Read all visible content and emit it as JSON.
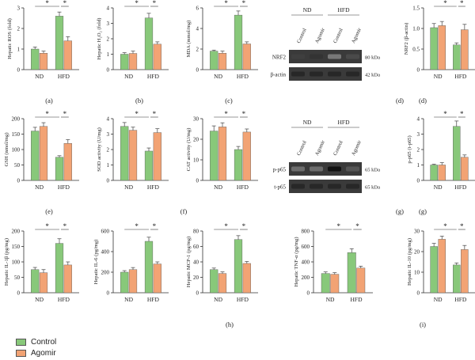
{
  "colors": {
    "control": "#88c87a",
    "agomir": "#f2a374",
    "error": "#444444",
    "axis": "#333333"
  },
  "legend": [
    {
      "label": "Control",
      "color": "#88c87a"
    },
    {
      "label": "Agomir",
      "color": "#f2a374"
    }
  ],
  "chart_data": [
    {
      "id": "ros",
      "panel": "(a)",
      "type": "bar",
      "ylabel": "Hepatic ROS (fold)",
      "yticks": [
        0,
        1,
        2,
        3
      ],
      "ylim": [
        0,
        3
      ],
      "categories": [
        "ND",
        "HFD"
      ],
      "series": [
        {
          "name": "Control",
          "values": [
            1.0,
            2.6
          ],
          "errors": [
            0.1,
            0.2
          ]
        },
        {
          "name": "Agomir",
          "values": [
            0.8,
            1.4
          ],
          "errors": [
            0.1,
            0.2
          ]
        }
      ],
      "significance": [
        "*",
        "*"
      ]
    },
    {
      "id": "h2o2",
      "panel": "(b)",
      "type": "bar",
      "ylabel": "Hepatic H₂O₂ (fold)",
      "yticks": [
        0,
        1,
        2,
        3,
        4
      ],
      "ylim": [
        0,
        4
      ],
      "categories": [
        "ND",
        "HFD"
      ],
      "series": [
        {
          "name": "Control",
          "values": [
            1.0,
            3.35
          ],
          "errors": [
            0.1,
            0.3
          ]
        },
        {
          "name": "Agomir",
          "values": [
            1.05,
            1.65
          ],
          "errors": [
            0.15,
            0.15
          ]
        }
      ],
      "significance": [
        "*",
        "*"
      ]
    },
    {
      "id": "mda",
      "panel": "(c)",
      "type": "bar",
      "ylabel": "MDA (mmol/mg)",
      "yticks": [
        0,
        2,
        4,
        6
      ],
      "ylim": [
        0,
        6
      ],
      "categories": [
        "ND",
        "HFD"
      ],
      "series": [
        {
          "name": "Control",
          "values": [
            1.8,
            5.3
          ],
          "errors": [
            0.1,
            0.4
          ]
        },
        {
          "name": "Agomir",
          "values": [
            1.6,
            2.5
          ],
          "errors": [
            0.2,
            0.2
          ]
        }
      ],
      "significance": [
        "*",
        "*"
      ]
    },
    {
      "id": "nrf2",
      "panel": "(d)",
      "type": "bar",
      "ylabel": "NRF2 (β-actin)",
      "yticks": [
        0,
        0.5,
        1.0,
        1.5
      ],
      "ytick_labels": [
        "0",
        "0.5",
        "1.0",
        "1.5"
      ],
      "ylim": [
        0,
        1.5
      ],
      "categories": [
        "ND",
        "HFD"
      ],
      "series": [
        {
          "name": "Control",
          "values": [
            1.02,
            0.6
          ],
          "errors": [
            0.1,
            0.05
          ]
        },
        {
          "name": "Agomir",
          "values": [
            1.07,
            0.97
          ],
          "errors": [
            0.1,
            0.13
          ]
        }
      ],
      "significance": [
        "*",
        "*"
      ]
    },
    {
      "id": "gsh",
      "panel": "(e)",
      "type": "bar",
      "ylabel": "GSH (nmol/mg)",
      "yticks": [
        0,
        50,
        100,
        150,
        200
      ],
      "ylim": [
        0,
        200
      ],
      "categories": [
        "ND",
        "HFD"
      ],
      "series": [
        {
          "name": "Control",
          "values": [
            160,
            75
          ],
          "errors": [
            12,
            5
          ]
        },
        {
          "name": "Agomir",
          "values": [
            175,
            120
          ],
          "errors": [
            12,
            12
          ]
        }
      ],
      "significance": [
        "*",
        "*"
      ]
    },
    {
      "id": "sod",
      "panel": "(f)",
      "type": "bar",
      "ylabel": "SOD activity (U/mg)",
      "yticks": [
        0,
        1,
        2,
        3,
        4
      ],
      "ylim": [
        0,
        4
      ],
      "categories": [
        "ND",
        "HFD"
      ],
      "series": [
        {
          "name": "Control",
          "values": [
            3.5,
            1.9
          ],
          "errors": [
            0.25,
            0.2
          ]
        },
        {
          "name": "Agomir",
          "values": [
            3.25,
            3.1
          ],
          "errors": [
            0.2,
            0.25
          ]
        }
      ],
      "significance": [
        "*",
        "*"
      ]
    },
    {
      "id": "cat",
      "panel": "(f)",
      "type": "bar",
      "ylabel": "CAT activity (U/mg)",
      "yticks": [
        0,
        10,
        20,
        30
      ],
      "ylim": [
        0,
        30
      ],
      "categories": [
        "ND",
        "HFD"
      ],
      "series": [
        {
          "name": "Control",
          "values": [
            24,
            15
          ],
          "errors": [
            2.5,
            1.5
          ]
        },
        {
          "name": "Agomir",
          "values": [
            26,
            23.5
          ],
          "errors": [
            2,
            1.5
          ]
        }
      ],
      "significance": [
        "*",
        "*"
      ]
    },
    {
      "id": "pp65",
      "panel": "(g)",
      "type": "bar",
      "ylabel": "p-p65 (t-p65)",
      "yticks": [
        0,
        1,
        2,
        3,
        4
      ],
      "ylim": [
        0,
        4
      ],
      "categories": [
        "ND",
        "HFD"
      ],
      "series": [
        {
          "name": "Control",
          "values": [
            1.0,
            3.5
          ],
          "errors": [
            0.05,
            0.35
          ]
        },
        {
          "name": "Agomir",
          "values": [
            1.0,
            1.5
          ],
          "errors": [
            0.15,
            0.15
          ]
        }
      ],
      "significance": [
        "*",
        "*"
      ]
    },
    {
      "id": "il1b",
      "panel": "(h)",
      "type": "bar",
      "ylabel": "Hepatic IL-1β (pg/mg)",
      "yticks": [
        0,
        50,
        100,
        150,
        200
      ],
      "ylim": [
        0,
        200
      ],
      "categories": [
        "ND",
        "HFD"
      ],
      "series": [
        {
          "name": "Control",
          "values": [
            75,
            160
          ],
          "errors": [
            7,
            15
          ]
        },
        {
          "name": "Agomir",
          "values": [
            65,
            90
          ],
          "errors": [
            10,
            10
          ]
        }
      ],
      "significance": [
        "*",
        "*"
      ]
    },
    {
      "id": "il6",
      "panel": "(h)",
      "type": "bar",
      "ylabel": "Hepatic IL-6 (pg/mg)",
      "yticks": [
        0,
        200,
        400,
        600
      ],
      "ylim": [
        0,
        600
      ],
      "categories": [
        "ND",
        "HFD"
      ],
      "series": [
        {
          "name": "Control",
          "values": [
            200,
            500
          ],
          "errors": [
            15,
            40
          ]
        },
        {
          "name": "Agomir",
          "values": [
            225,
            280
          ],
          "errors": [
            20,
            20
          ]
        }
      ],
      "significance": [
        "*",
        "*"
      ]
    },
    {
      "id": "mcp1",
      "panel": "(h)",
      "type": "bar",
      "ylabel": "Hepatic MCP-1 (pg/mg)",
      "yticks": [
        0,
        20,
        40,
        60,
        80
      ],
      "ylim": [
        0,
        80
      ],
      "categories": [
        "ND",
        "HFD"
      ],
      "series": [
        {
          "name": "Control",
          "values": [
            30,
            69
          ],
          "errors": [
            2,
            5
          ]
        },
        {
          "name": "Agomir",
          "values": [
            25,
            38
          ],
          "errors": [
            2,
            2.5
          ]
        }
      ],
      "significance": [
        "*",
        "*"
      ]
    },
    {
      "id": "tnfa",
      "panel": "(h)",
      "type": "bar",
      "ylabel": "Hepatic TNF-α (pg/mg)",
      "yticks": [
        0,
        200,
        400,
        600,
        800
      ],
      "ylim": [
        0,
        800
      ],
      "categories": [
        "ND",
        "HFD"
      ],
      "series": [
        {
          "name": "Control",
          "values": [
            250,
            520
          ],
          "errors": [
            20,
            50
          ]
        },
        {
          "name": "Agomir",
          "values": [
            240,
            320
          ],
          "errors": [
            20,
            25
          ]
        }
      ],
      "significance": [
        "*",
        "*"
      ]
    },
    {
      "id": "il10",
      "panel": "(i)",
      "type": "bar",
      "ylabel": "Hepatic IL-10 (pg/mg)",
      "yticks": [
        0,
        10,
        20,
        30
      ],
      "ylim": [
        0,
        30
      ],
      "categories": [
        "ND",
        "HFD"
      ],
      "series": [
        {
          "name": "Control",
          "values": [
            22.5,
            13.5
          ],
          "errors": [
            1.5,
            1
          ]
        },
        {
          "name": "Agomir",
          "values": [
            26,
            21
          ],
          "errors": [
            1.5,
            2
          ]
        }
      ],
      "significance": [
        "*",
        "*"
      ]
    }
  ],
  "blots": [
    {
      "id": "blot-d",
      "panel": "(d)",
      "groups": [
        "ND",
        "HFD"
      ],
      "lanes": [
        "Control",
        "Agomir",
        "Control",
        "Agomir"
      ],
      "rows": [
        {
          "label": "NRF2",
          "size": "80 kDa",
          "intensity": [
            0.75,
            0.8,
            0.5,
            0.7
          ]
        },
        {
          "label": "β-actin",
          "size": "42 kDa",
          "intensity": [
            0.85,
            0.85,
            0.85,
            0.85
          ]
        }
      ]
    },
    {
      "id": "blot-g",
      "panel": "(g)",
      "groups": [
        "ND",
        "HFD"
      ],
      "lanes": [
        "Control",
        "Agomir",
        "Control",
        "Agomir"
      ],
      "rows": [
        {
          "label": "p-p65",
          "size": "65 kDa",
          "intensity": [
            0.55,
            0.55,
            0.95,
            0.65
          ]
        },
        {
          "label": "t-p65",
          "size": "65 kDa",
          "intensity": [
            0.85,
            0.85,
            0.85,
            0.85
          ]
        }
      ]
    }
  ]
}
